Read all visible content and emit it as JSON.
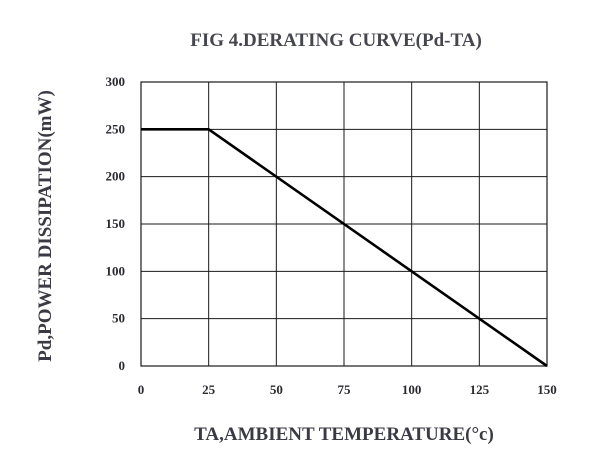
{
  "chart_data": {
    "type": "line",
    "title": "FIG 4.DERATING  CURVE(Pd-TA)",
    "xlabel": "TA,AMBIENT TEMPERATURE(°c)",
    "ylabel": "Pd,POWER DISSIPATION(mW)",
    "xlim": [
      0,
      150
    ],
    "ylim": [
      0,
      300
    ],
    "x_ticks": [
      0,
      25,
      50,
      75,
      100,
      125,
      150
    ],
    "y_ticks": [
      0,
      50,
      100,
      150,
      200,
      250,
      300
    ],
    "grid": true,
    "series": [
      {
        "x": [
          0,
          25,
          150
        ],
        "y": [
          250,
          250,
          0
        ]
      }
    ],
    "colors": {
      "line": "#000000",
      "grid": "#1a1a1a",
      "frame": "#1a1a1a"
    }
  }
}
